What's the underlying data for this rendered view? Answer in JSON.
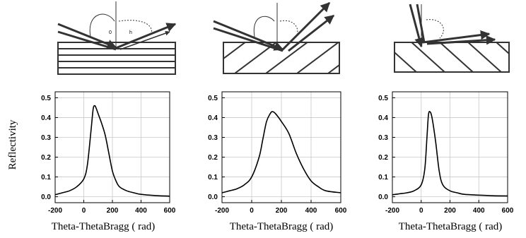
{
  "figure": {
    "ylabel": "Reflectivity"
  },
  "chart_data": [
    {
      "type": "line",
      "xlabel": "Theta-ThetaBragg ( rad)",
      "ylabel": "Reflectivity",
      "xlim": [
        -200,
        600
      ],
      "ylim": [
        -0.03,
        0.53
      ],
      "xticks": [
        -200,
        0,
        200,
        400,
        600
      ],
      "yticks": [
        0.0,
        0.1,
        0.2,
        0.3,
        0.4,
        0.5
      ],
      "grid": true,
      "series": [
        {
          "x": [
            -200,
            -150,
            -100,
            -50,
            0,
            25,
            50,
            65,
            75,
            85,
            100,
            125,
            150,
            175,
            200,
            225,
            250,
            300,
            350,
            400,
            500,
            600
          ],
          "y": [
            0.01,
            0.02,
            0.03,
            0.05,
            0.09,
            0.16,
            0.33,
            0.44,
            0.46,
            0.45,
            0.42,
            0.37,
            0.31,
            0.22,
            0.13,
            0.08,
            0.05,
            0.03,
            0.02,
            0.012,
            0.006,
            0.003
          ]
        }
      ]
    },
    {
      "type": "line",
      "xlabel": "Theta-ThetaBragg ( rad)",
      "ylabel": "",
      "xlim": [
        -200,
        600
      ],
      "ylim": [
        -0.03,
        0.53
      ],
      "xticks": [
        -200,
        0,
        200,
        400,
        600
      ],
      "yticks": [
        0.0,
        0.1,
        0.2,
        0.3,
        0.4,
        0.5
      ],
      "grid": true,
      "series": [
        {
          "x": [
            -200,
            -150,
            -100,
            -50,
            0,
            50,
            75,
            100,
            125,
            140,
            160,
            200,
            250,
            300,
            350,
            400,
            450,
            500,
            600
          ],
          "y": [
            0.02,
            0.03,
            0.04,
            0.06,
            0.1,
            0.2,
            0.29,
            0.38,
            0.42,
            0.43,
            0.42,
            0.38,
            0.32,
            0.22,
            0.14,
            0.08,
            0.05,
            0.03,
            0.02
          ]
        }
      ]
    },
    {
      "type": "line",
      "xlabel": "Theta-ThetaBragg ( rad)",
      "ylabel": "",
      "xlim": [
        -200,
        600
      ],
      "ylim": [
        -0.03,
        0.53
      ],
      "xticks": [
        -200,
        0,
        200,
        400,
        600
      ],
      "yticks": [
        0.0,
        0.1,
        0.2,
        0.3,
        0.4,
        0.5
      ],
      "grid": true,
      "series": [
        {
          "x": [
            -200,
            -150,
            -100,
            -50,
            0,
            25,
            40,
            50,
            60,
            75,
            100,
            125,
            150,
            200,
            250,
            300,
            400,
            500,
            600
          ],
          "y": [
            0.01,
            0.015,
            0.02,
            0.03,
            0.06,
            0.14,
            0.3,
            0.41,
            0.43,
            0.4,
            0.28,
            0.13,
            0.06,
            0.03,
            0.02,
            0.012,
            0.008,
            0.005,
            0.004
          ]
        }
      ]
    }
  ]
}
